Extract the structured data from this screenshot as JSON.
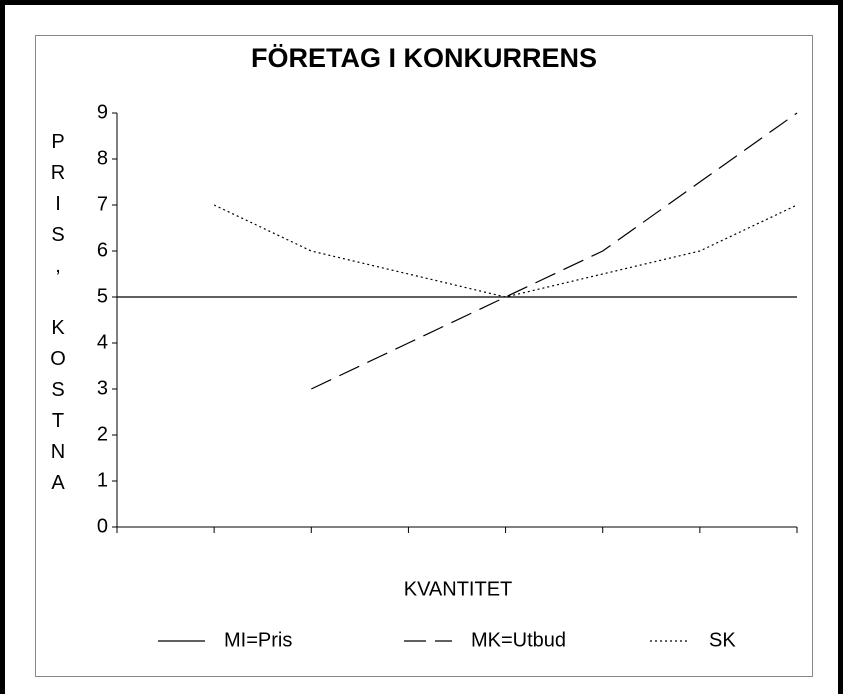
{
  "chart_data": {
    "type": "line",
    "title": "FÖRETAG I KONKURRENS",
    "x_label": "KVANTITET",
    "y_label": "PRIS, KOSTNA",
    "categories": [
      null,
      null,
      null,
      null,
      null,
      null,
      null,
      null
    ],
    "ylim": [
      0,
      9
    ],
    "yticks": [
      0,
      1,
      2,
      3,
      4,
      5,
      6,
      7,
      8,
      9
    ],
    "grid": false,
    "legend": "bottom",
    "series": [
      {
        "name": "MI=Pris",
        "color": "#000000",
        "line_style": "solid",
        "values": [
          5,
          5,
          5,
          5,
          5,
          5,
          5,
          5
        ]
      },
      {
        "name": "MK=Utbud",
        "color": "#000000",
        "line_style": "dashed",
        "values": [
          null,
          null,
          3,
          4,
          5,
          6,
          7.5,
          9
        ]
      },
      {
        "name": "SK",
        "color": "#000000",
        "line_style": "dotted",
        "values": [
          null,
          7,
          6,
          5.5,
          5,
          5.5,
          6,
          7
        ]
      }
    ]
  }
}
